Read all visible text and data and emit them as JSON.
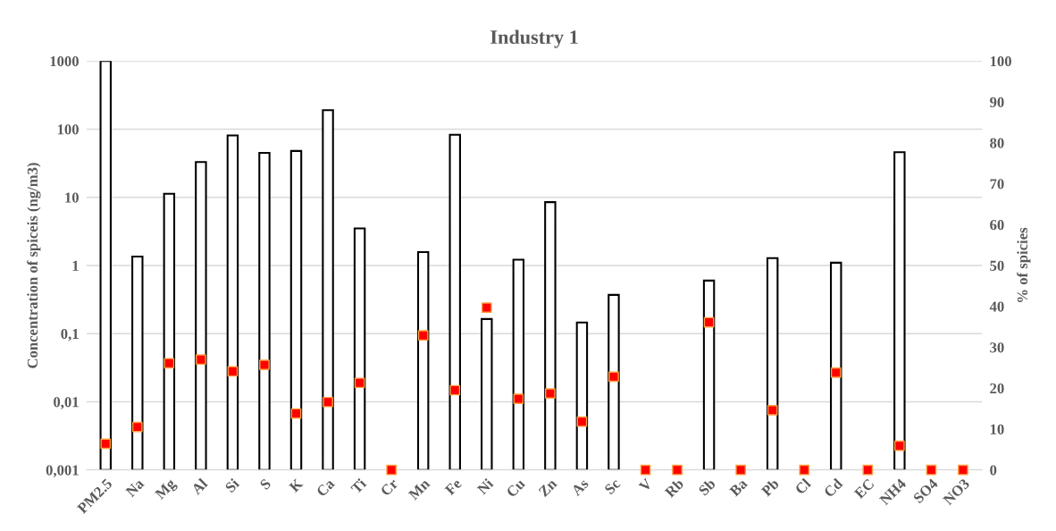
{
  "chart_data": {
    "type": "bar",
    "title": "Industry 1",
    "ylabel": "Concentration of spiceis (ng/m3)",
    "y2label": "% of spicies",
    "categories": [
      "PM2.5",
      "Na",
      "Mg",
      "Al",
      "Si",
      "S",
      "K",
      "Ca",
      "Ti",
      "Cr",
      "Mn",
      "Fe",
      "Ni",
      "Cu",
      "Zn",
      "As",
      "Sc",
      "V",
      "Rb",
      "Sb",
      "Ba",
      "Pb",
      "Cl",
      "Cd",
      "EC",
      "NH4",
      "SO4",
      "NO3"
    ],
    "series": [
      {
        "color": "#ffffff",
        "values": [
          1000,
          1.35,
          11.3,
          33,
          81,
          45,
          48,
          190,
          3.5,
          null,
          1.57,
          83,
          0.164,
          1.22,
          8.5,
          0.146,
          0.37,
          null,
          null,
          0.6,
          null,
          1.28,
          null,
          1.1,
          null,
          46,
          null,
          null
        ]
      },
      {
        "type": "scatter",
        "axis": "y2",
        "color": "#ff0000",
        "marker": "square",
        "values": [
          6.4,
          10.5,
          26.1,
          27.0,
          24.1,
          25.7,
          13.8,
          16.6,
          21.3,
          0,
          32.9,
          19.5,
          39.7,
          17.4,
          18.7,
          11.8,
          22.8,
          0,
          0,
          36.1,
          0,
          14.6,
          0,
          23.8,
          0,
          5.9,
          0,
          0
        ]
      }
    ],
    "log": "y",
    "ylim": [
      0.001,
      1000
    ],
    "yticks": [
      {
        "value": 0.001,
        "label": "0,001"
      },
      {
        "value": 0.01,
        "label": "0,01"
      },
      {
        "value": 0.1,
        "label": "0,1"
      },
      1,
      10,
      100,
      1000
    ],
    "y2lim": [
      0,
      100
    ],
    "y2ticks": [
      0,
      10,
      20,
      30,
      40,
      50,
      60,
      70,
      80,
      90,
      100
    ],
    "grid": "y",
    "legend": false
  }
}
